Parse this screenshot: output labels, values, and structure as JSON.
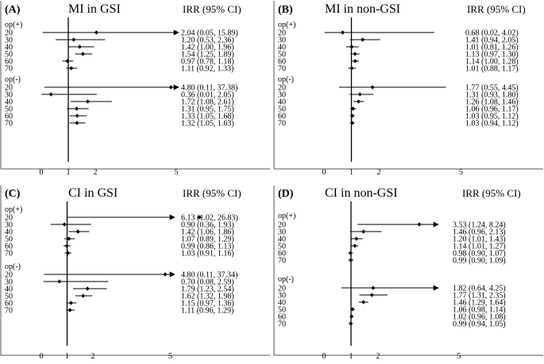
{
  "chart_data": [
    {
      "type": "forest",
      "panel_label": "(A)",
      "title": "MI in GSI",
      "ci_header": "IRR (95% CI)",
      "xlim": [
        0,
        5
      ],
      "xticks": [
        0,
        1,
        2,
        5
      ],
      "reference_line": 1,
      "groups": [
        {
          "name": "op(+)",
          "rows": [
            {
              "age": "20",
              "irr": 2.04,
              "lo": 0.05,
              "hi": 15.89,
              "text": "2.04 (0.05, 15.89)"
            },
            {
              "age": "30",
              "irr": 1.2,
              "lo": 0.53,
              "hi": 2.36,
              "text": "1.20 (0.53, 2.36)"
            },
            {
              "age": "40",
              "irr": 1.42,
              "lo": 1.0,
              "hi": 1.96,
              "text": "1.42 (1.00, 1.96)"
            },
            {
              "age": "50",
              "irr": 1.54,
              "lo": 1.25,
              "hi": 1.89,
              "text": "1.54 (1.25, 1.89)"
            },
            {
              "age": "60",
              "irr": 0.97,
              "lo": 0.78,
              "hi": 1.18,
              "text": "0.97 (0.78, 1.18)"
            },
            {
              "age": "70",
              "irr": 1.11,
              "lo": 0.92,
              "hi": 1.33,
              "text": "1.11 (0.92, 1.33)"
            }
          ]
        },
        {
          "name": "op(-)",
          "rows": [
            {
              "age": "20",
              "irr": 4.8,
              "lo": 0.11,
              "hi": 37.38,
              "text": "4.80 (0.11, 37.38)"
            },
            {
              "age": "30",
              "irr": 0.36,
              "lo": 0.01,
              "hi": 2.05,
              "text": "0.36 (0.01, 2.05)"
            },
            {
              "age": "40",
              "irr": 1.72,
              "lo": 1.08,
              "hi": 2.61,
              "text": "1.72 (1.08, 2.61)"
            },
            {
              "age": "50",
              "irr": 1.31,
              "lo": 0.95,
              "hi": 1.75,
              "text": "1.31 (0.95, 1.75)"
            },
            {
              "age": "60",
              "irr": 1.33,
              "lo": 1.05,
              "hi": 1.68,
              "text": "1.33 (1.05, 1.68)"
            },
            {
              "age": "70",
              "irr": 1.32,
              "lo": 1.05,
              "hi": 1.63,
              "text": "1.32 (1.05, 1.63)"
            }
          ]
        }
      ]
    },
    {
      "type": "forest",
      "panel_label": "(B)",
      "title": "MI in non-GSI",
      "ci_header": "IRR (95% CI)",
      "xlim": [
        0,
        5
      ],
      "xticks": [
        0,
        1,
        2,
        5
      ],
      "reference_line": 1,
      "groups": [
        {
          "name": "op(+)",
          "rows": [
            {
              "age": "20",
              "irr": 0.68,
              "lo": 0.02,
              "hi": 4.02,
              "text": "0.68 (0.02, 4.02)"
            },
            {
              "age": "30",
              "irr": 1.41,
              "lo": 0.94,
              "hi": 2.05,
              "text": "1.41 (0.94, 2.05)"
            },
            {
              "age": "40",
              "irr": 1.01,
              "lo": 0.81,
              "hi": 1.26,
              "text": "1.01 (0.81, 1.26)"
            },
            {
              "age": "50",
              "irr": 1.13,
              "lo": 0.97,
              "hi": 1.3,
              "text": "1.13 (0.97, 1.30)"
            },
            {
              "age": "60",
              "irr": 1.14,
              "lo": 1.0,
              "hi": 1.28,
              "text": "1.14 (1.00, 1.28)"
            },
            {
              "age": "70",
              "irr": 1.01,
              "lo": 0.88,
              "hi": 1.17,
              "text": "1.01 (0.88, 1.17)"
            }
          ]
        },
        {
          "name": "op(-)",
          "rows": [
            {
              "age": "20",
              "irr": 1.77,
              "lo": 0.55,
              "hi": 4.45,
              "text": "1.77 (0.55, 4.45)"
            },
            {
              "age": "30",
              "irr": 1.31,
              "lo": 0.93,
              "hi": 1.8,
              "text": "1.31 (0.93, 1.80)"
            },
            {
              "age": "40",
              "irr": 1.26,
              "lo": 1.08,
              "hi": 1.46,
              "text": "1.26 (1.08, 1.46)"
            },
            {
              "age": "50",
              "irr": 1.06,
              "lo": 0.96,
              "hi": 1.17,
              "text": "1.06 (0.96, 1.17)"
            },
            {
              "age": "60",
              "irr": 1.03,
              "lo": 0.95,
              "hi": 1.12,
              "text": "1.03 (0.95, 1.12)"
            },
            {
              "age": "70",
              "irr": 1.03,
              "lo": 0.94,
              "hi": 1.12,
              "text": "1.03 (0.94, 1.12)"
            }
          ]
        }
      ]
    },
    {
      "type": "forest",
      "panel_label": "(C)",
      "title": "CI in GSI",
      "ci_header": "IRR (95% CI)",
      "xlim": [
        0,
        5
      ],
      "xticks": [
        0,
        1,
        2,
        5
      ],
      "reference_line": 1,
      "groups": [
        {
          "name": "op(+)",
          "rows": [
            {
              "age": "20",
              "irr": 6.13,
              "lo": 1.02,
              "hi": 26.83,
              "text": "6.13 (1.02, 26.83)"
            },
            {
              "age": "30",
              "irr": 0.9,
              "lo": 0.36,
              "hi": 1.93,
              "text": "0.90 (0.36, 1.93)"
            },
            {
              "age": "40",
              "irr": 1.42,
              "lo": 1.06,
              "hi": 1.86,
              "text": "1.42 (1.06, 1.86)"
            },
            {
              "age": "50",
              "irr": 1.07,
              "lo": 0.89,
              "hi": 1.29,
              "text": "1.07 (0.89, 1.29)"
            },
            {
              "age": "60",
              "irr": 0.99,
              "lo": 0.86,
              "hi": 1.13,
              "text": "0.99 (0.86, 1.13)"
            },
            {
              "age": "70",
              "irr": 1.03,
              "lo": 0.91,
              "hi": 1.16,
              "text": "1.03 (0.91, 1.16)"
            }
          ]
        },
        {
          "name": "op(-)",
          "rows": [
            {
              "age": "20",
              "irr": 4.8,
              "lo": 0.11,
              "hi": 37.34,
              "text": "4.80 (0.11, 37.34)"
            },
            {
              "age": "30",
              "irr": 0.7,
              "lo": 0.08,
              "hi": 2.59,
              "text": "0.70 (0.08, 2.59)"
            },
            {
              "age": "40",
              "irr": 1.79,
              "lo": 1.23,
              "hi": 2.54,
              "text": "1.79 (1.23, 2.54)"
            },
            {
              "age": "50",
              "irr": 1.62,
              "lo": 1.32,
              "hi": 1.98,
              "text": "1.62 (1.32, 1.98)"
            },
            {
              "age": "60",
              "irr": 1.15,
              "lo": 0.97,
              "hi": 1.36,
              "text": "1.15 (0.97, 1.36)"
            },
            {
              "age": "70",
              "irr": 1.11,
              "lo": 0.96,
              "hi": 1.29,
              "text": "1.11 (0.96, 1.29)"
            }
          ]
        }
      ]
    },
    {
      "type": "forest",
      "panel_label": "(D)",
      "title": "CI in non-GSI",
      "ci_header": "IRR (95% CI)",
      "xlim": [
        0,
        5
      ],
      "xticks": [
        0,
        1,
        2,
        5
      ],
      "reference_line": 1,
      "groups": [
        {
          "name": "op(+)",
          "rows": [
            {
              "age": "20",
              "irr": 3.53,
              "lo": 1.24,
              "hi": 8.24,
              "text": "3.53 (1.24, 8.24)"
            },
            {
              "age": "30",
              "irr": 1.46,
              "lo": 0.96,
              "hi": 2.13,
              "text": "1.46 (0.96, 2.13)"
            },
            {
              "age": "40",
              "irr": 1.2,
              "lo": 1.01,
              "hi": 1.43,
              "text": "1.20 (1.01, 1.43)"
            },
            {
              "age": "50",
              "irr": 1.14,
              "lo": 1.01,
              "hi": 1.27,
              "text": "1.14 (1.01, 1.27)"
            },
            {
              "age": "60",
              "irr": 0.98,
              "lo": 0.9,
              "hi": 1.07,
              "text": "0.98 (0.90, 1.07)"
            },
            {
              "age": "70",
              "irr": 0.99,
              "lo": 0.9,
              "hi": 1.09,
              "text": "0.99 (0.90, 1.09)"
            }
          ]
        },
        {
          "name": "op(-)",
          "rows": [
            {
              "age": "20",
              "irr": 1.82,
              "lo": 0.64,
              "hi": 4.25,
              "text": "1.82 (0.64, 4.25)"
            },
            {
              "age": "30",
              "irr": 1.77,
              "lo": 1.31,
              "hi": 2.35,
              "text": "1.77 (1.31, 2.35)"
            },
            {
              "age": "40",
              "irr": 1.46,
              "lo": 1.29,
              "hi": 1.64,
              "text": "1.46 (1.29, 1.64)"
            },
            {
              "age": "50",
              "irr": 1.06,
              "lo": 0.98,
              "hi": 1.14,
              "text": "1.06 (0.98, 1.14)"
            },
            {
              "age": "60",
              "irr": 1.02,
              "lo": 0.96,
              "hi": 1.08,
              "text": "1.02 (0.96, 1.08)"
            },
            {
              "age": "70",
              "irr": 0.99,
              "lo": 0.94,
              "hi": 1.05,
              "text": "0.99 (0.94, 1.05)"
            }
          ]
        }
      ]
    }
  ]
}
